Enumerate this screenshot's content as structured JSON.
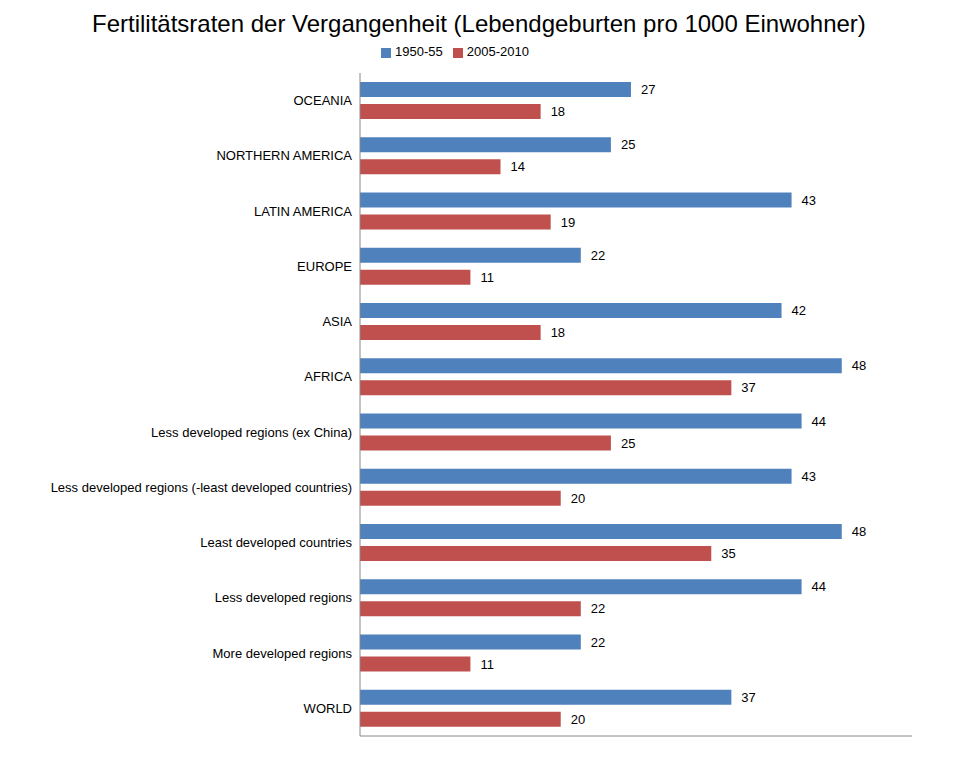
{
  "chart_data": {
    "type": "bar",
    "title": "Fertilitätsraten der Vergangenheit (Lebendgeburten pro 1000 Einwohner)",
    "orientation": "horizontal",
    "categories": [
      "OCEANIA",
      "NORTHERN AMERICA",
      "LATIN AMERICA",
      "EUROPE",
      "ASIA",
      "AFRICA",
      "Less developed regions (ex China)",
      "Less developed regions (-least developed countries)",
      "Least developed countries",
      "Less developed regions",
      "More developed regions",
      "WORLD"
    ],
    "series": [
      {
        "name": "1950-55",
        "color": "#4f81bd",
        "values": [
          27,
          25,
          43,
          22,
          42,
          48,
          44,
          43,
          48,
          44,
          22,
          37
        ]
      },
      {
        "name": "2005-2010",
        "color": "#c0504d",
        "values": [
          18,
          14,
          19,
          11,
          18,
          37,
          25,
          20,
          35,
          22,
          11,
          20
        ]
      }
    ],
    "xlim": [
      0,
      55
    ],
    "xticks": [],
    "grid": false,
    "legend": "top",
    "data_labels": true,
    "tick_labels": "y"
  }
}
